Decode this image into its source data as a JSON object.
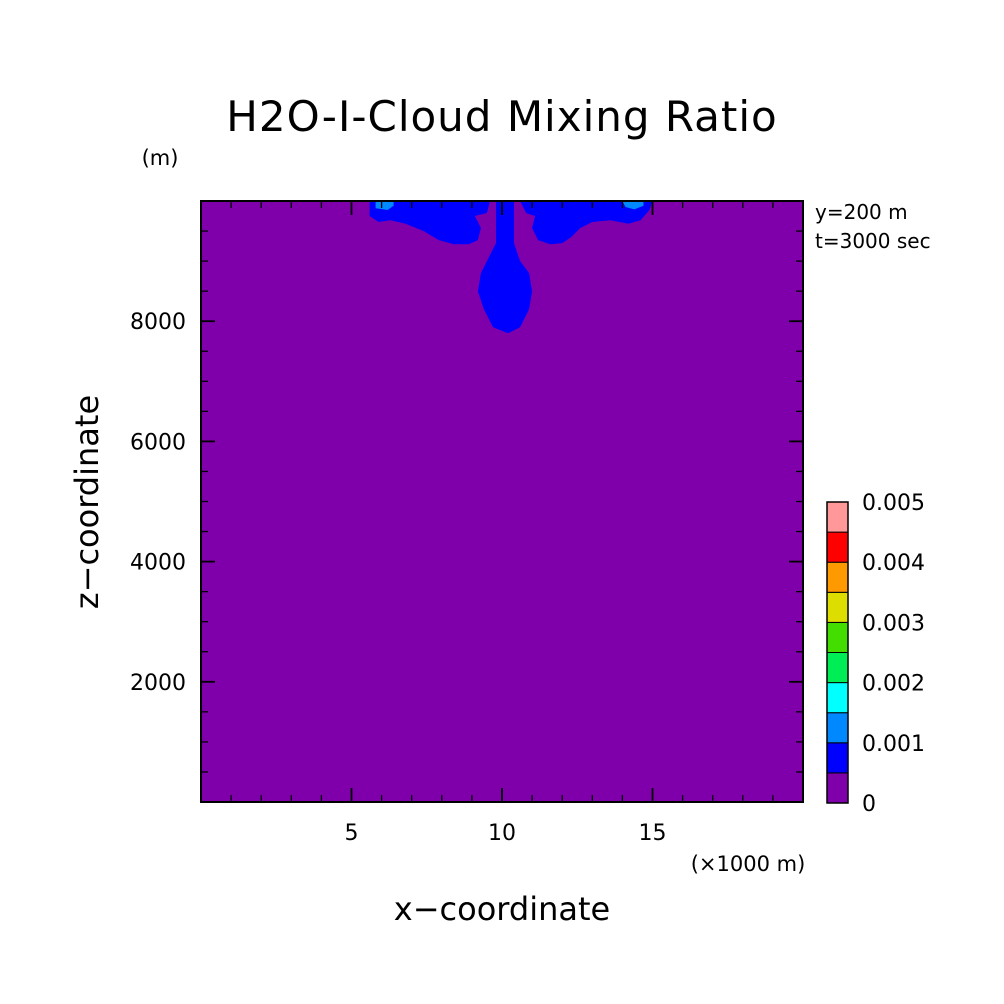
{
  "chart_data": {
    "type": "heatmap",
    "title": "H2O-I-Cloud Mixing Ratio",
    "xlabel": "x−coordinate",
    "ylabel": "z−coordinate",
    "x_unit": "(×1000 m)",
    "y_unit": "(m)",
    "x_range": [
      0,
      20
    ],
    "y_range": [
      0,
      10000
    ],
    "x_ticks": [
      5,
      10,
      15
    ],
    "x_tick_labels": [
      "5",
      "10",
      "15"
    ],
    "y_ticks": [
      2000,
      4000,
      6000,
      8000
    ],
    "y_tick_labels": [
      "2000",
      "4000",
      "6000",
      "8000"
    ],
    "annotations": [
      "y=200 m",
      "t=3000 sec"
    ],
    "background_level": 0,
    "regions": [
      {
        "level_min": 0.0005,
        "level_max": 0.001,
        "color": "#0000ff",
        "shape": "central-column",
        "points": [
          [
            9.8,
            10.0
          ],
          [
            9.8,
            9.3
          ],
          [
            9.5,
            9.0
          ],
          [
            9.3,
            8.8
          ],
          [
            9.2,
            8.5
          ],
          [
            9.4,
            8.2
          ],
          [
            9.7,
            7.9
          ],
          [
            10.2,
            7.8
          ],
          [
            10.6,
            7.9
          ],
          [
            10.9,
            8.2
          ],
          [
            11.0,
            8.5
          ],
          [
            10.9,
            8.8
          ],
          [
            10.6,
            9.0
          ],
          [
            10.4,
            9.3
          ],
          [
            10.4,
            10.0
          ]
        ]
      },
      {
        "level_min": 0.0005,
        "level_max": 0.001,
        "color": "#0000ff",
        "shape": "left-lobe",
        "points": [
          [
            5.6,
            10.0
          ],
          [
            5.6,
            9.75
          ],
          [
            5.9,
            9.65
          ],
          [
            6.3,
            9.68
          ],
          [
            6.8,
            9.62
          ],
          [
            7.4,
            9.5
          ],
          [
            7.9,
            9.35
          ],
          [
            8.4,
            9.28
          ],
          [
            8.9,
            9.28
          ],
          [
            9.2,
            9.35
          ],
          [
            9.3,
            9.55
          ],
          [
            9.1,
            9.75
          ],
          [
            9.5,
            9.8
          ],
          [
            9.6,
            10.0
          ]
        ]
      },
      {
        "level_min": 0.0005,
        "level_max": 0.001,
        "color": "#0000ff",
        "shape": "right-lobe",
        "points": [
          [
            10.6,
            10.0
          ],
          [
            10.8,
            9.8
          ],
          [
            11.1,
            9.75
          ],
          [
            11.0,
            9.55
          ],
          [
            11.2,
            9.35
          ],
          [
            11.6,
            9.28
          ],
          [
            12.0,
            9.3
          ],
          [
            12.3,
            9.4
          ],
          [
            12.6,
            9.55
          ],
          [
            13.0,
            9.65
          ],
          [
            13.6,
            9.68
          ],
          [
            14.2,
            9.62
          ],
          [
            14.6,
            9.68
          ],
          [
            14.9,
            9.85
          ],
          [
            15.0,
            10.0
          ]
        ]
      },
      {
        "level_min": 0.001,
        "level_max": 0.0015,
        "color": "#0088ff",
        "shape": "left-edge-spot",
        "points": [
          [
            5.8,
            10.0
          ],
          [
            5.8,
            9.88
          ],
          [
            6.2,
            9.85
          ],
          [
            6.4,
            9.92
          ],
          [
            6.4,
            10.0
          ]
        ]
      },
      {
        "level_min": 0.001,
        "level_max": 0.0015,
        "color": "#0088ff",
        "shape": "right-edge-spot",
        "points": [
          [
            14.0,
            10.0
          ],
          [
            14.1,
            9.9
          ],
          [
            14.4,
            9.86
          ],
          [
            14.7,
            9.92
          ],
          [
            14.7,
            10.0
          ]
        ]
      }
    ],
    "colorbar": {
      "levels": [
        0,
        0.0005,
        0.001,
        0.0015,
        0.002,
        0.0025,
        0.003,
        0.0035,
        0.004,
        0.0045,
        0.005
      ],
      "colors": [
        "#7f00ab",
        "#0000ff",
        "#0088ff",
        "#00ffff",
        "#00ee55",
        "#44dd00",
        "#dddd00",
        "#ff9900",
        "#ff0000",
        "#ff9999"
      ],
      "tick_values": [
        0,
        0.001,
        0.002,
        0.003,
        0.004,
        0.005
      ],
      "tick_labels": [
        "0",
        "0.001",
        "0.002",
        "0.003",
        "0.004",
        "0.005"
      ]
    }
  }
}
